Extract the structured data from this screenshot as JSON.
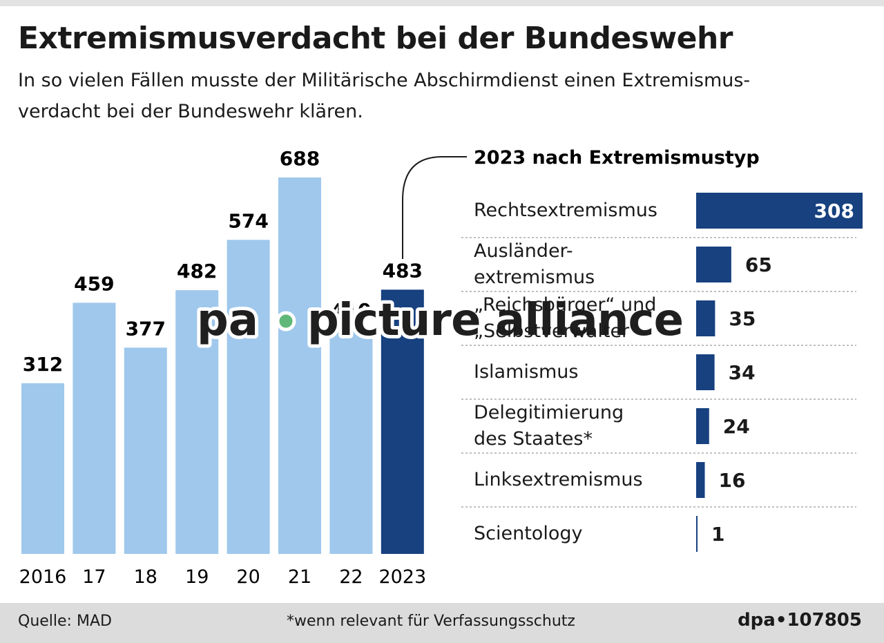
{
  "title": "Extremismusverdacht bei der Bundeswehr",
  "subtitle": "In so vielen Fällen musste der Militärische Abschirmdienst einen Extremismus-\nverdacht bei der Bundeswehr klären.",
  "chart_data": [
    {
      "type": "bar",
      "orientation": "vertical",
      "categories": [
        "2016",
        "17",
        "18",
        "19",
        "20",
        "21",
        "22",
        "2023"
      ],
      "values": [
        312,
        459,
        377,
        482,
        574,
        688,
        410,
        483
      ],
      "colors": [
        "#9fc8ec",
        "#9fc8ec",
        "#9fc8ec",
        "#9fc8ec",
        "#9fc8ec",
        "#9fc8ec",
        "#9fc8ec",
        "#17417f"
      ]
    },
    {
      "type": "bar",
      "orientation": "horizontal",
      "title": "2023 nach Extremismustyp",
      "categories": [
        "Rechtsextremismus",
        "Ausländer-\nextremismus",
        "„Reichsbürger“ und\n„Selbstverwalter“",
        "Islamismus",
        "Delegitimierung\ndes Staates*",
        "Linksextremismus",
        "Scientology"
      ],
      "values": [
        308,
        65,
        35,
        34,
        24,
        16,
        1
      ],
      "color": "#17417f"
    }
  ],
  "source": "Quelle: MAD",
  "note": "*wenn relevant für Verfassungsschutz",
  "credit": "dpa•107805",
  "watermark": {
    "left": "pa",
    "right": "picture alliance"
  }
}
